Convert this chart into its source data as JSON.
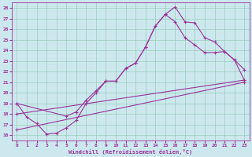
{
  "xlabel": "Windchill (Refroidissement éolien,°C)",
  "bg_color": "#cce8ee",
  "line_color": "#993399",
  "grid_color": "#99ccbb",
  "xlim": [
    -0.5,
    23.5
  ],
  "ylim": [
    15.5,
    28.5
  ],
  "xticks": [
    0,
    1,
    2,
    3,
    4,
    5,
    6,
    7,
    8,
    9,
    10,
    11,
    12,
    13,
    14,
    15,
    16,
    17,
    18,
    19,
    20,
    21,
    22,
    23
  ],
  "yticks": [
    16,
    17,
    18,
    19,
    20,
    21,
    22,
    23,
    24,
    25,
    26,
    27,
    28
  ],
  "line1_x": [
    0,
    1,
    2,
    3,
    4,
    5,
    6,
    7,
    8,
    9,
    10,
    11,
    12,
    13,
    14,
    15,
    16,
    17,
    18,
    19,
    20,
    21,
    22,
    23
  ],
  "line1_y": [
    19.0,
    17.7,
    17.1,
    16.1,
    16.2,
    16.7,
    17.4,
    19.0,
    20.0,
    21.1,
    21.1,
    22.3,
    22.8,
    24.3,
    26.3,
    27.4,
    28.1,
    26.7,
    26.6,
    25.2,
    24.8,
    23.9,
    23.1,
    22.2
  ],
  "line2_x": [
    0,
    5,
    6,
    7,
    8,
    9,
    10,
    11,
    12,
    13,
    14,
    15,
    16,
    17,
    18,
    19,
    20,
    21,
    22,
    23
  ],
  "line2_y": [
    19.0,
    17.8,
    18.2,
    19.3,
    20.2,
    21.1,
    21.1,
    22.3,
    22.8,
    24.3,
    26.3,
    27.4,
    26.7,
    25.2,
    24.5,
    23.8,
    23.8,
    23.9,
    23.1,
    21.2
  ],
  "line3_x": [
    0,
    23
  ],
  "line3_y": [
    18.0,
    21.2
  ],
  "line4_x": [
    0,
    23
  ],
  "line4_y": [
    16.5,
    21.0
  ]
}
